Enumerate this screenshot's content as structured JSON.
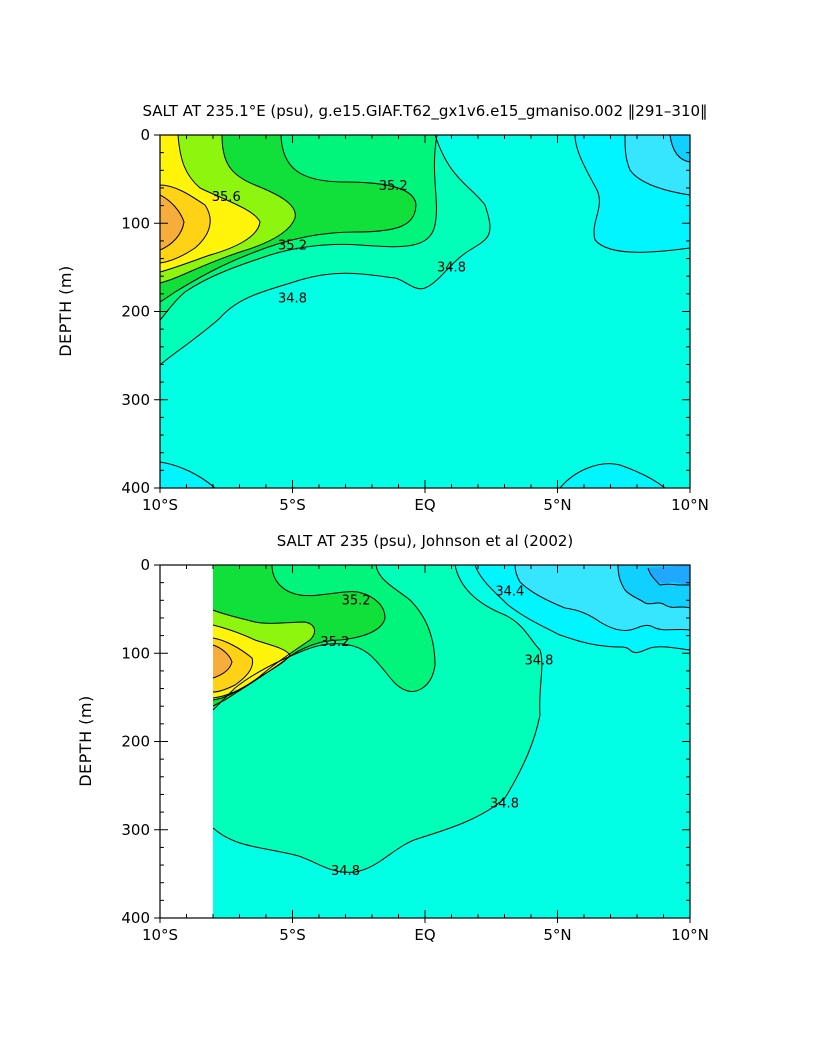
{
  "chart_data": [
    {
      "type": "contour",
      "title": "SALT AT 235.1°E (psu), g.e15.GIAF.T62_gx1v6.e15_gmaniso.002 ‖291–310‖",
      "ylabel": "DEPTH (m)",
      "xlabel": "",
      "x_ticks": [
        "10°S",
        "5°S",
        "EQ",
        "5°N",
        "10°N"
      ],
      "y_ticks": [
        "0",
        "100",
        "200",
        "300",
        "400"
      ],
      "xlim": [
        -10,
        10
      ],
      "ylim": [
        400,
        0
      ],
      "contour_labels": [
        {
          "text": "35.6",
          "lat": -7.5,
          "depth": 70
        },
        {
          "text": "35.2",
          "lat": -1.2,
          "depth": 58
        },
        {
          "text": "35.2",
          "lat": -5.0,
          "depth": 125
        },
        {
          "text": "34.8",
          "lat": -5.0,
          "depth": 185
        },
        {
          "text": "34.8",
          "lat": 1.0,
          "depth": 150
        }
      ]
    },
    {
      "type": "contour",
      "title": "SALT AT 235 (psu), Johnson et al (2002)",
      "ylabel": "DEPTH (m)",
      "xlabel": "",
      "x_ticks": [
        "10°S",
        "5°S",
        "EQ",
        "5°N",
        "10°N"
      ],
      "y_ticks": [
        "0",
        "100",
        "200",
        "300",
        "400"
      ],
      "xlim": [
        -10,
        10
      ],
      "ylim": [
        400,
        0
      ],
      "data_extent_lat": [
        -8,
        10
      ],
      "contour_labels": [
        {
          "text": "35.2",
          "lat": -2.6,
          "depth": 40
        },
        {
          "text": "35.2",
          "lat": -3.4,
          "depth": 87
        },
        {
          "text": "34.4",
          "lat": 3.2,
          "depth": 30
        },
        {
          "text": "34.8",
          "lat": 4.3,
          "depth": 108
        },
        {
          "text": "34.8",
          "lat": 3.0,
          "depth": 270
        },
        {
          "text": "34.8",
          "lat": -3.0,
          "depth": 347
        }
      ]
    }
  ]
}
